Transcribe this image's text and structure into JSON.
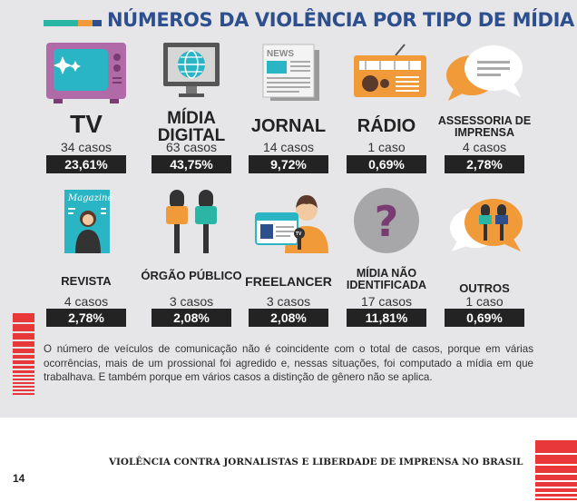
{
  "header": {
    "title": "NÚMEROS DA VIOLÊNCIA POR TIPO DE MÍDIA",
    "bar_colors": [
      "#2ab5a5",
      "#f09a3a",
      "#2e4f8e"
    ]
  },
  "media": [
    {
      "label": "TV",
      "cases": "34 casos",
      "percent": "23,61%",
      "icon": "tv-icon"
    },
    {
      "label": "MÍDIA DIGITAL",
      "cases": "63 casos",
      "percent": "43,75%",
      "icon": "globe-monitor-icon"
    },
    {
      "label": "JORNAL",
      "cases": "14 casos",
      "percent": "9,72%",
      "icon": "newspaper-icon"
    },
    {
      "label": "RÁDIO",
      "cases": "1 caso",
      "percent": "0,69%",
      "icon": "radio-icon"
    },
    {
      "label": "ASSESSORIA DE IMPRENSA",
      "cases": "4 casos",
      "percent": "2,78%",
      "icon": "speech-bubbles-icon"
    },
    {
      "label": "REVISTA",
      "cases": "4 casos",
      "percent": "2,78%",
      "icon": "magazine-icon"
    },
    {
      "label": "ÓRGÃO PÚBLICO",
      "cases": "3 casos",
      "percent": "2,08%",
      "icon": "microphones-icon"
    },
    {
      "label": "FREELANCER",
      "cases": "3 casos",
      "percent": "2,08%",
      "icon": "press-badge-reporter-icon"
    },
    {
      "label": "MÍDIA NÃO IDENTIFICADA",
      "cases": "17 casos",
      "percent": "11,81%",
      "icon": "question-mark-icon"
    },
    {
      "label": "OUTROS",
      "cases": "1 caso",
      "percent": "0,69%",
      "icon": "press-mics-bubble-icon"
    }
  ],
  "magazine_word": "Magazine",
  "news_word": "NEWS",
  "tv_word": "TV",
  "note": "O número de veículos de comunicação não é coincidente com o total de casos, porque em várias ocorrências, mais de um prossional foi agredido e, nessas situações, foi computado a mídia em que trabalhava. E também porque em vários casos a distinção de gênero não se aplica.",
  "footer": {
    "text": "VIOLÊNCIA CONTRA JORNALISTAS E LIBERDADE DE IMPRENSA NO BRASIL",
    "page_number": "14"
  },
  "accent_color": "#e8383a",
  "title_color": "#2e4f8e"
}
